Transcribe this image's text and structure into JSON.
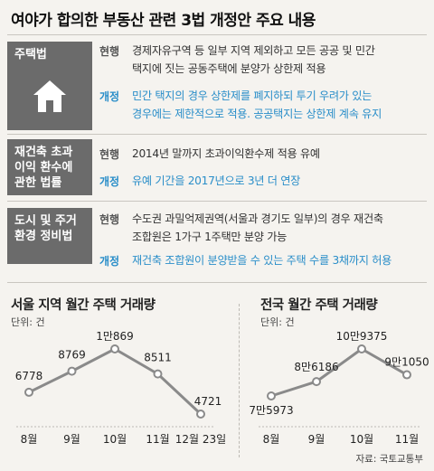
{
  "title": "여야가 합의한 부동산 관련 3법 개정안 주요 내용",
  "labels": {
    "current": "현행",
    "revised": "개정"
  },
  "laws": [
    {
      "name": "주택법",
      "current": [
        "경제자유구역 등 일부 지역 제외하고 모든 공공 및 민간",
        "택지에 짓는 공동주택에 분양가 상한제 적용"
      ],
      "revised": [
        "민간 택지의 경우 상한제를 폐지하되 투기 우려가 있는",
        "경우에는 제한적으로 적용. 공공택지는 상한제 계속 유지"
      ]
    },
    {
      "name": "재건축 초과 이익 환수에 관한 법률",
      "current": [
        "2014년 말까지 초과이익환수제 적용 유예"
      ],
      "revised": [
        "유예 기간을 2017년으로 3년 더 연장"
      ]
    },
    {
      "name": "도시 및 주거 환경 정비법",
      "current": [
        "수도권 과밀억제권역(서울과 경기도 일부)의 경우 재건축",
        "조합원은 1가구 1주택만 분양 가능"
      ],
      "revised": [
        "재건축 조합원이 분양받을 수 있는 주택 수를 3채까지 허용"
      ]
    }
  ],
  "colors": {
    "accent": "#2a8ec9",
    "line": "#8a8a8a",
    "box": "#6b6b6b"
  },
  "source": "자료: 국토교통부",
  "chart_data": [
    {
      "type": "line",
      "title": "서울 지역 월간 주택 거래량",
      "unit": "단위: 건",
      "categories": [
        "8월",
        "9월",
        "10월",
        "11월",
        "12월 23일"
      ],
      "values": [
        6778,
        8769,
        10869,
        8511,
        4721
      ],
      "value_labels": [
        "6778",
        "8769",
        "1만869",
        "8511",
        "4721"
      ]
    },
    {
      "type": "line",
      "title": "전국 월간 주택 거래량",
      "unit": "단위: 건",
      "categories": [
        "8월",
        "9월",
        "10월",
        "11월"
      ],
      "values": [
        75973,
        86186,
        109375,
        91050
      ],
      "value_labels": [
        "7만5973",
        "8만6186",
        "10만9375",
        "9만1050"
      ]
    }
  ]
}
